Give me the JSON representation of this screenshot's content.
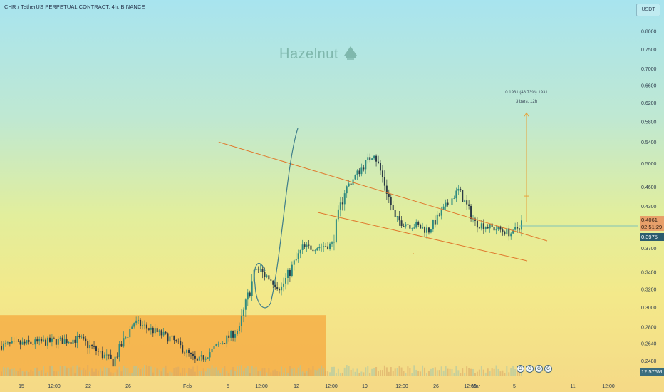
{
  "header": {
    "title": "CHR / TetherUS PERPETUAL CONTRACT, 4h, BINANCE"
  },
  "watermark": {
    "text": "Hazelnut",
    "icon": "triangle-leaf-icon"
  },
  "price_axis": {
    "currency": "USDT",
    "last_price": "0.4061",
    "countdown": "02:51:29",
    "low_marker": "0.3975",
    "volume_label": "12.576M"
  },
  "measure": {
    "line1": "0.1931 (48.73%) 1931",
    "line2": "3 bars, 12h"
  },
  "events": [
    "G",
    "G",
    "G",
    "G"
  ],
  "colors": {
    "up": "#2e8a80",
    "down": "#2a3a45",
    "trend": "#e0782c",
    "zone": "#f5a83e",
    "curve": "#3f7d8a",
    "ruler": "#e6a23c",
    "last_line": "#5fb3c0"
  },
  "chart_data": {
    "type": "candlestick",
    "title": "CHR / TetherUS PERPETUAL CONTRACT, 4h, BINANCE",
    "y_ticks": [
      "0.8000",
      "0.7500",
      "0.7000",
      "0.6600",
      "0.6200",
      "0.5800",
      "0.5400",
      "0.5000",
      "0.4600",
      "0.4300",
      "0.3700",
      "0.3400",
      "0.3200",
      "0.3000",
      "0.2800",
      "0.2640",
      "0.2480"
    ],
    "x_ticks": [
      "15",
      "12:00",
      "22",
      "26",
      "Feb",
      "5",
      "12:00",
      "12",
      "12:00",
      "19",
      "12:00",
      "26",
      "12:00",
      "Mar",
      "5",
      "11",
      "12:00"
    ],
    "scale": "log",
    "y_range": [
      0.235,
      0.85
    ],
    "segments": [
      {
        "n": 38,
        "from": 0.262,
        "to": 0.268,
        "vol": 0.03
      },
      {
        "n": 16,
        "from": 0.268,
        "to": 0.247,
        "vol": 0.035
      },
      {
        "n": 10,
        "from": 0.247,
        "to": 0.285,
        "vol": 0.04
      },
      {
        "n": 18,
        "from": 0.285,
        "to": 0.268,
        "vol": 0.03
      },
      {
        "n": 12,
        "from": 0.268,
        "to": 0.247,
        "vol": 0.03
      },
      {
        "n": 20,
        "from": 0.247,
        "to": 0.278,
        "vol": 0.03
      },
      {
        "n": 8,
        "from": 0.278,
        "to": 0.345,
        "vol": 0.05
      },
      {
        "n": 12,
        "from": 0.345,
        "to": 0.322,
        "vol": 0.04
      },
      {
        "n": 10,
        "from": 0.322,
        "to": 0.37,
        "vol": 0.04
      },
      {
        "n": 14,
        "from": 0.37,
        "to": 0.375,
        "vol": 0.03
      },
      {
        "n": 6,
        "from": 0.375,
        "to": 0.455,
        "vol": 0.05
      },
      {
        "n": 14,
        "from": 0.455,
        "to": 0.52,
        "vol": 0.03
      },
      {
        "n": 10,
        "from": 0.52,
        "to": 0.41,
        "vol": 0.04
      },
      {
        "n": 16,
        "from": 0.41,
        "to": 0.395,
        "vol": 0.035
      },
      {
        "n": 14,
        "from": 0.395,
        "to": 0.455,
        "vol": 0.03
      },
      {
        "n": 8,
        "from": 0.455,
        "to": 0.405,
        "vol": 0.035
      },
      {
        "n": 18,
        "from": 0.405,
        "to": 0.39,
        "vol": 0.03
      },
      {
        "n": 4,
        "from": 0.39,
        "to": 0.4061,
        "vol": 0.04
      }
    ],
    "demand_zone": {
      "price_low": 0.235,
      "price_high": 0.292
    },
    "channel_upper": [
      {
        "x": 0.32,
        "y": 0.54
      },
      {
        "x": 0.84,
        "y": 0.385
      }
    ],
    "channel_lower": [
      {
        "x": 0.3,
        "y": 0.43
      },
      {
        "x": 0.8,
        "y": 0.366
      }
    ],
    "measure_range": {
      "from": 0.4061,
      "to": 0.599
    }
  }
}
